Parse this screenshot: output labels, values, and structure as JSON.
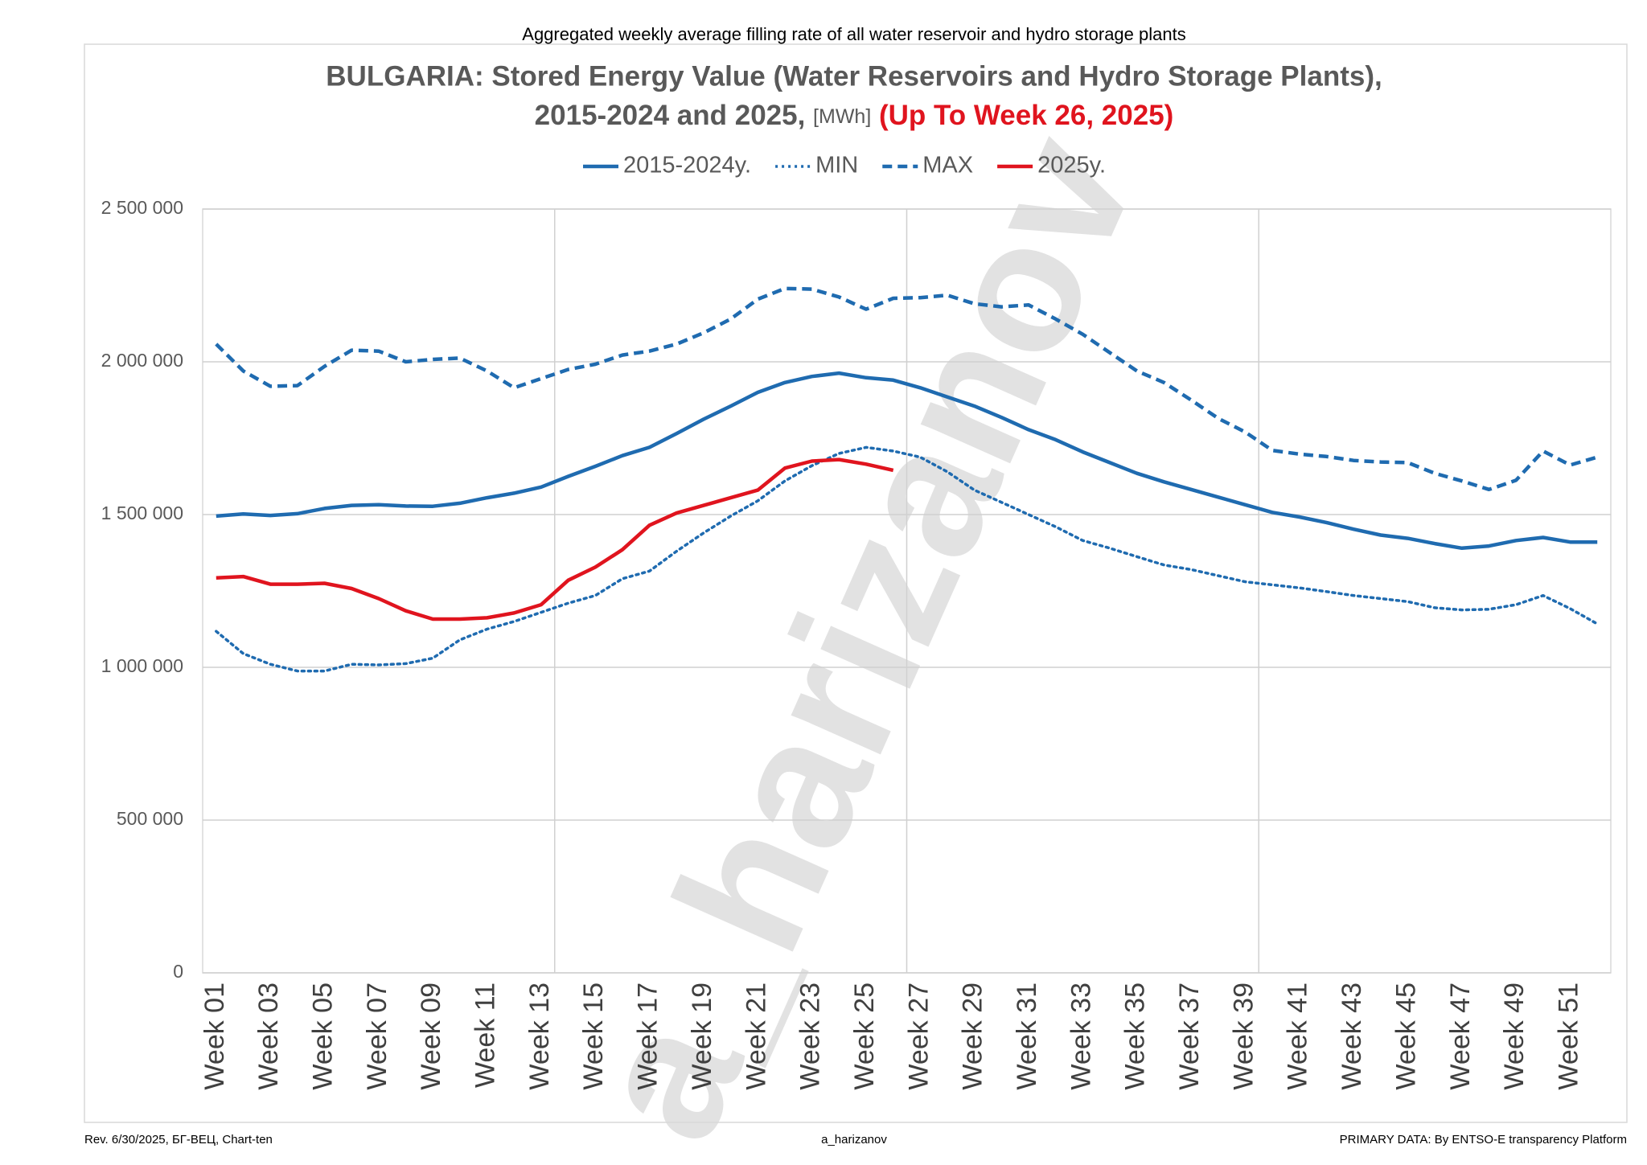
{
  "chart_data": {
    "type": "line",
    "caption": "Aggregated weekly average filling rate of all water reservoir and hydro storage plants",
    "title_line1": "BULGARIA: Stored Energy Value (Water Reservoirs and Hydro Storage Plants),",
    "title_line2": "2015-2024 and 2025, ",
    "title_unit": "[MWh]",
    "title_highlight": " (Up To Week 26, 2025)",
    "watermark": "a_harizanov",
    "footer_left": "Rev. 6/30/2025, БГ-ВЕЦ, Chart-ten",
    "footer_center": "a_harizanov",
    "footer_right": "PRIMARY DATA: By ENTSO-E transparency Platform",
    "categories": [
      "Week 01",
      null,
      "Week 03",
      null,
      "Week 05",
      null,
      "Week 07",
      null,
      "Week 09",
      null,
      "Week 11",
      null,
      "Week 13",
      null,
      "Week 15",
      null,
      "Week 17",
      null,
      "Week 19",
      null,
      "Week 21",
      null,
      "Week 23",
      null,
      "Week 25",
      null,
      "Week 27",
      null,
      "Week 29",
      null,
      "Week 31",
      null,
      "Week 33",
      null,
      "Week 35",
      null,
      "Week 37",
      null,
      "Week 39",
      null,
      "Week 41",
      null,
      "Week 43",
      null,
      "Week 45",
      null,
      "Week 47",
      null,
      "Week 49",
      null,
      "Week 51",
      null
    ],
    "series": [
      {
        "name": "2015-2024y.",
        "color": "#1f6bb0",
        "dash": "solid",
        "values": [
          1495000,
          1502000,
          1497000,
          1503000,
          1520000,
          1530000,
          1532000,
          1528000,
          1527000,
          1537000,
          1555000,
          1570000,
          1590000,
          1625000,
          1658000,
          1693000,
          1720000,
          1765000,
          1812000,
          1855000,
          1900000,
          1932000,
          1952000,
          1963000,
          1948000,
          1940000,
          1915000,
          1885000,
          1855000,
          1818000,
          1778000,
          1745000,
          1705000,
          1670000,
          1635000,
          1607000,
          1582000,
          1557000,
          1532000,
          1507000,
          1492000,
          1474000,
          1452000,
          1433000,
          1422000,
          1405000,
          1390000,
          1397000,
          1415000,
          1425000,
          1410000,
          1410000
        ]
      },
      {
        "name": "MIN",
        "color": "#1f6bb0",
        "dash": "dotted",
        "values": [
          1118000,
          1045000,
          1010000,
          988000,
          988000,
          1010000,
          1008000,
          1012000,
          1030000,
          1090000,
          1125000,
          1150000,
          1180000,
          1210000,
          1235000,
          1290000,
          1315000,
          1380000,
          1440000,
          1495000,
          1545000,
          1610000,
          1660000,
          1700000,
          1720000,
          1708000,
          1688000,
          1640000,
          1580000,
          1540000,
          1500000,
          1460000,
          1415000,
          1390000,
          1362000,
          1335000,
          1320000,
          1300000,
          1280000,
          1270000,
          1260000,
          1248000,
          1235000,
          1225000,
          1215000,
          1195000,
          1188000,
          1190000,
          1205000,
          1235000,
          1192000,
          1142000
        ]
      },
      {
        "name": "MAX",
        "color": "#1f6bb0",
        "dash": "dashed",
        "values": [
          2058000,
          1970000,
          1920000,
          1922000,
          1985000,
          2038000,
          2035000,
          2000000,
          2008000,
          2012000,
          1970000,
          1915000,
          1945000,
          1975000,
          1992000,
          2022000,
          2035000,
          2058000,
          2095000,
          2140000,
          2205000,
          2240000,
          2238000,
          2212000,
          2172000,
          2208000,
          2210000,
          2218000,
          2190000,
          2180000,
          2186000,
          2140000,
          2090000,
          2030000,
          1970000,
          1932000,
          1875000,
          1815000,
          1770000,
          1710000,
          1698000,
          1690000,
          1677000,
          1672000,
          1670000,
          1635000,
          1610000,
          1582000,
          1612000,
          1708000,
          1662000,
          1688000
        ]
      },
      {
        "name": "2025y.",
        "color": "#e0141e",
        "dash": "solid",
        "values": [
          1293000,
          1297000,
          1272000,
          1272000,
          1275000,
          1258000,
          1225000,
          1185000,
          1158000,
          1158000,
          1162000,
          1178000,
          1205000,
          1285000,
          1328000,
          1385000,
          1465000,
          1505000,
          1530000,
          1555000,
          1580000,
          1652000,
          1675000,
          1680000,
          1665000,
          1645000,
          null,
          null,
          null,
          null,
          null,
          null,
          null,
          null,
          null,
          null,
          null,
          null,
          null,
          null,
          null,
          null,
          null,
          null,
          null,
          null,
          null,
          null,
          null,
          null,
          null,
          null
        ]
      }
    ],
    "ylim": [
      0,
      2500000
    ],
    "yticks": [
      0,
      {
        "value": 500000,
        "label": "500 000"
      },
      {
        "value": 1000000,
        "label": "1 000 000"
      },
      {
        "value": 1500000,
        "label": "1 500 000"
      },
      {
        "value": 2000000,
        "label": "2 000 000"
      },
      {
        "value": 2500000,
        "label": "2 500 000"
      }
    ],
    "grid": true,
    "legend": "top"
  }
}
